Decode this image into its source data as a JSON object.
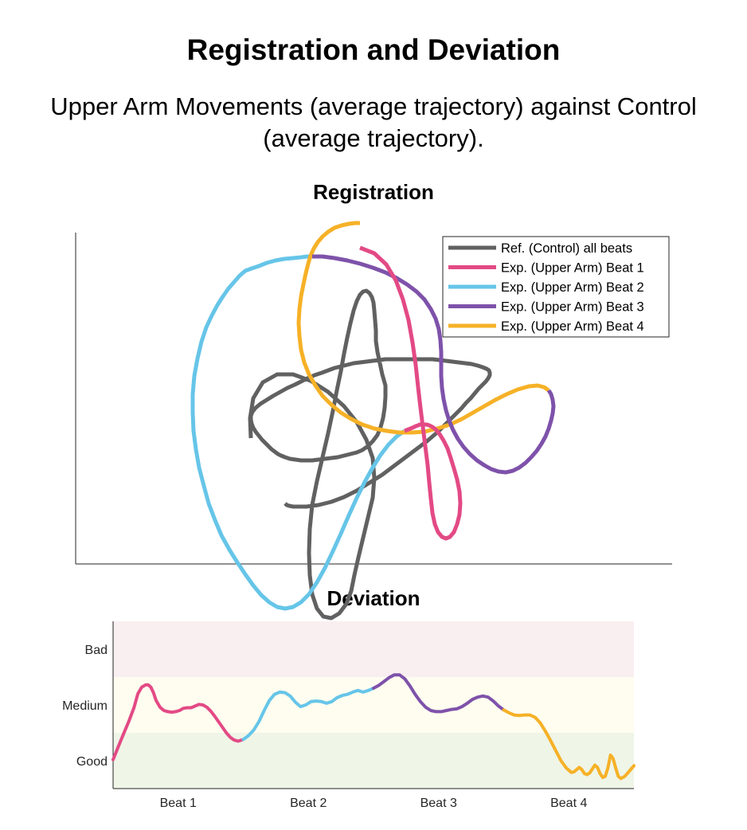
{
  "title": "Registration and Deviation",
  "subtitle": "Upper Arm Movements (average trajectory) against Control (average trajectory).",
  "colors": {
    "control": "#616161",
    "beat1": "#e34a85",
    "beat2": "#66c5e8",
    "beat3": "#7e52aa",
    "beat4": "#f6b127",
    "band_bad": "#f9eff1",
    "band_medium": "#fefdf0",
    "band_good": "#eff5e7"
  },
  "chart_data": [
    {
      "type": "line",
      "title": "Registration",
      "xlabel": "",
      "ylabel": "",
      "legend_position": "top-right",
      "legend": [
        {
          "label": "Ref. (Control) all beats",
          "color": "#616161"
        },
        {
          "label": "Exp. (Upper Arm) Beat 1",
          "color": "#e34a85"
        },
        {
          "label": "Exp. (Upper Arm) Beat 2",
          "color": "#66c5e8"
        },
        {
          "label": "Exp. (Upper Arm) Beat 3",
          "color": "#7e52aa"
        },
        {
          "label": "Exp. (Upper Arm) Beat 4",
          "color": "#f6b127"
        }
      ],
      "series": [
        {
          "id": "control",
          "name": "Ref. (Control) all beats",
          "color": "#616161",
          "x": [
            315,
            314,
            318,
            330,
            348,
            368,
            390,
            412,
            432,
            448,
            460,
            468,
            470,
            468,
            462,
            456,
            450,
            445,
            441,
            435,
            426,
            416,
            406,
            398,
            392,
            389,
            388,
            389,
            392,
            398,
            405,
            412,
            418,
            423,
            428,
            432,
            436,
            440,
            444,
            448,
            452,
            456,
            460,
            464,
            467,
            469,
            470,
            471,
            472,
            472,
            474,
            477,
            480,
            484,
            484,
            483,
            481,
            478,
            474,
            468,
            462,
            455,
            448,
            440,
            432,
            424,
            416,
            408,
            400,
            392,
            385,
            378,
            371,
            364,
            358,
            353,
            349,
            345,
            341,
            337,
            333,
            329,
            325,
            321,
            318,
            316,
            315,
            315,
            317,
            321,
            327,
            335,
            343,
            352,
            361,
            370,
            378,
            386,
            395,
            404,
            412,
            420,
            428,
            436,
            444,
            452,
            460,
            468,
            476,
            484,
            492,
            500,
            508,
            516,
            525,
            534,
            543,
            552,
            560,
            568,
            576,
            584,
            592,
            600,
            606,
            611,
            614,
            615,
            615,
            613,
            610,
            606,
            601,
            596,
            591,
            585,
            580,
            574,
            568,
            562,
            556,
            550,
            543,
            536,
            528,
            520,
            512,
            504,
            496,
            488,
            480,
            472,
            464,
            456,
            448,
            440,
            432,
            424,
            416,
            408,
            400,
            392,
            385,
            379,
            373,
            368,
            363,
            360,
            358
          ],
          "y": [
            550,
            525,
            500,
            480,
            470,
            470,
            478,
            492,
            510,
            530,
            552,
            575,
            600,
            625,
            650,
            675,
            700,
            722,
            742,
            758,
            770,
            776,
            774,
            764,
            746,
            722,
            694,
            664,
            634,
            604,
            574,
            544,
            516,
            490,
            466,
            444,
            424,
            406,
            390,
            378,
            370,
            366,
            365,
            368,
            373,
            380,
            390,
            402,
            415,
            428,
            442,
            456,
            470,
            484,
            498,
            512,
            525,
            536,
            546,
            554,
            560,
            565,
            568,
            570,
            572,
            574,
            575,
            576,
            577,
            578,
            578,
            578,
            577,
            576,
            574,
            572,
            570,
            567,
            564,
            560,
            556,
            552,
            547,
            542,
            537,
            532,
            527,
            522,
            517,
            512,
            507,
            502,
            497,
            492,
            487,
            483,
            479,
            475,
            471,
            468,
            465,
            462,
            460,
            458,
            456,
            455,
            454,
            453,
            452,
            451,
            451,
            451,
            451,
            451,
            451,
            451,
            451,
            452,
            453,
            454,
            455,
            456,
            457,
            459,
            461,
            463,
            465,
            468,
            471,
            475,
            479,
            483,
            488,
            494,
            500,
            506,
            512,
            518,
            524,
            530,
            536,
            542,
            548,
            554,
            560,
            566,
            572,
            578,
            584,
            590,
            596,
            601,
            606,
            611,
            616,
            620,
            624,
            627,
            630,
            632,
            634,
            635,
            636,
            636,
            636,
            636,
            635,
            634,
            632
          ]
        },
        {
          "id": "beat1",
          "name": "Exp. (Upper Arm) Beat 1",
          "color": "#e34a85",
          "x": [
            452,
            470,
            485,
            497,
            506,
            513,
            518,
            522,
            525,
            528,
            531,
            534,
            537,
            539,
            541,
            543,
            546,
            550,
            555,
            560,
            565,
            570,
            574,
            577,
            578,
            577,
            574,
            570,
            566,
            562,
            557,
            552,
            547,
            543,
            539,
            536,
            533,
            531,
            529,
            527,
            525,
            522,
            518,
            513,
            508
          ],
          "y": [
            311,
            318,
            332,
            352,
            376,
            402,
            430,
            458,
            486,
            512,
            536,
            560,
            584,
            606,
            626,
            644,
            658,
            668,
            674,
            676,
            674,
            668,
            658,
            646,
            632,
            617,
            602,
            588,
            575,
            563,
            553,
            545,
            539,
            536,
            534,
            533,
            533,
            533,
            533,
            533,
            534,
            535,
            537,
            539,
            541
          ]
        },
        {
          "id": "beat2",
          "name": "Exp. (Upper Arm) Beat 2",
          "color": "#66c5e8",
          "x": [
            508,
            498,
            488,
            478,
            468,
            458,
            448,
            438,
            428,
            418,
            408,
            398,
            388,
            378,
            368,
            358,
            348,
            338,
            328,
            318,
            308,
            298,
            288,
            278,
            270,
            262,
            256,
            250,
            246,
            243,
            242,
            242,
            244,
            248,
            253,
            259,
            266,
            273,
            280,
            287,
            294,
            301,
            308,
            316,
            325,
            335,
            346,
            357,
            368,
            378,
            386,
            392
          ],
          "y": [
            541,
            548,
            558,
            571,
            587,
            605,
            625,
            647,
            670,
            692,
            713,
            731,
            746,
            756,
            762,
            764,
            762,
            756,
            747,
            735,
            721,
            706,
            690,
            672,
            653,
            632,
            610,
            587,
            564,
            541,
            518,
            495,
            472,
            450,
            429,
            411,
            396,
            383,
            372,
            362,
            354,
            346,
            340,
            337,
            334,
            330,
            327,
            325,
            324,
            323,
            322,
            322
          ]
        },
        {
          "id": "beat3",
          "name": "Exp. (Upper Arm) Beat 3",
          "color": "#7e52aa",
          "x": [
            392,
            405,
            420,
            436,
            452,
            468,
            484,
            498,
            511,
            523,
            533,
            541,
            547,
            551,
            553,
            554,
            554,
            554,
            555,
            557,
            560,
            564,
            569,
            575,
            582,
            590,
            599,
            608,
            617,
            626,
            635,
            644,
            652,
            660,
            667,
            674,
            680,
            685,
            689,
            692,
            694,
            695,
            694,
            692,
            689
          ],
          "y": [
            322,
            322,
            324,
            327,
            331,
            336,
            342,
            349,
            357,
            366,
            376,
            388,
            400,
            413,
            427,
            442,
            457,
            472,
            487,
            501,
            515,
            528,
            540,
            551,
            561,
            570,
            578,
            584,
            589,
            592,
            593,
            591,
            587,
            581,
            574,
            566,
            557,
            548,
            538,
            528,
            519,
            510,
            502,
            495,
            490
          ]
        },
        {
          "id": "beat4",
          "name": "Exp. (Upper Arm) Beat 4",
          "color": "#f6b127",
          "x": [
            689,
            683,
            675,
            664,
            650,
            636,
            622,
            608,
            594,
            580,
            565,
            549,
            533,
            517,
            501,
            486,
            470,
            455,
            441,
            428,
            416,
            405,
            396,
            388,
            382,
            378,
            376,
            375,
            376,
            378,
            381,
            384,
            387,
            390,
            394,
            399,
            405,
            412,
            420,
            429,
            438,
            446,
            452
          ],
          "y": [
            490,
            486,
            484,
            485,
            489,
            495,
            502,
            510,
            518,
            526,
            533,
            538,
            542,
            543,
            543,
            541,
            538,
            533,
            526,
            518,
            508,
            497,
            484,
            470,
            455,
            439,
            422,
            405,
            388,
            372,
            357,
            343,
            331,
            321,
            312,
            304,
            297,
            291,
            286,
            283,
            281,
            280,
            280
          ]
        }
      ]
    },
    {
      "type": "line",
      "title": "Deviation",
      "xlabel": "",
      "ylabel": "",
      "categories": [
        "Beat 1",
        "Beat 2",
        "Beat 3",
        "Beat 4"
      ],
      "y_ticks": [
        "Good",
        "Medium",
        "Bad"
      ],
      "bands": [
        "Good",
        "Medium",
        "Bad"
      ],
      "xlim": [
        0,
        4
      ],
      "ylim": [
        0,
        3
      ],
      "series": [
        {
          "id": "beat1",
          "name": "Exp. (Upper Arm) Beat 1",
          "color": "#e34a85",
          "x": [
            0.0,
            0.04,
            0.08,
            0.12,
            0.16,
            0.19,
            0.22,
            0.25,
            0.27,
            0.29,
            0.31,
            0.33,
            0.36,
            0.39,
            0.42,
            0.45,
            0.48,
            0.51,
            0.54,
            0.57,
            0.6,
            0.63,
            0.66,
            0.69,
            0.72,
            0.75,
            0.78,
            0.81,
            0.84,
            0.87,
            0.9,
            0.93,
            0.96,
            1.0
          ],
          "y": [
            0.52,
            0.75,
            0.98,
            1.2,
            1.45,
            1.7,
            1.82,
            1.86,
            1.86,
            1.82,
            1.72,
            1.58,
            1.46,
            1.4,
            1.38,
            1.37,
            1.38,
            1.4,
            1.44,
            1.45,
            1.45,
            1.48,
            1.51,
            1.5,
            1.46,
            1.39,
            1.3,
            1.2,
            1.1,
            1.0,
            0.92,
            0.87,
            0.85,
            0.88
          ]
        },
        {
          "id": "beat2",
          "name": "Exp. (Upper Arm) Beat 2",
          "color": "#66c5e8",
          "x": [
            1.0,
            1.04,
            1.08,
            1.12,
            1.16,
            1.2,
            1.24,
            1.28,
            1.32,
            1.36,
            1.4,
            1.44,
            1.48,
            1.52,
            1.56,
            1.6,
            1.64,
            1.68,
            1.72,
            1.76,
            1.8,
            1.84,
            1.88,
            1.92,
            1.96,
            2.0
          ],
          "y": [
            0.88,
            0.95,
            1.05,
            1.2,
            1.4,
            1.58,
            1.69,
            1.73,
            1.72,
            1.66,
            1.55,
            1.47,
            1.5,
            1.56,
            1.57,
            1.56,
            1.53,
            1.56,
            1.63,
            1.67,
            1.69,
            1.73,
            1.76,
            1.73,
            1.76,
            1.8
          ]
        },
        {
          "id": "beat3",
          "name": "Exp. (Upper Arm) Beat 3",
          "color": "#7e52aa",
          "x": [
            2.0,
            2.04,
            2.08,
            2.12,
            2.16,
            2.2,
            2.24,
            2.28,
            2.32,
            2.36,
            2.4,
            2.44,
            2.48,
            2.52,
            2.56,
            2.6,
            2.64,
            2.68,
            2.72,
            2.76,
            2.8,
            2.84,
            2.88,
            2.92,
            2.96,
            3.0
          ],
          "y": [
            1.8,
            1.85,
            1.92,
            1.99,
            2.04,
            2.04,
            1.97,
            1.84,
            1.69,
            1.56,
            1.46,
            1.4,
            1.38,
            1.38,
            1.4,
            1.42,
            1.43,
            1.47,
            1.53,
            1.6,
            1.64,
            1.66,
            1.64,
            1.57,
            1.48,
            1.41
          ]
        },
        {
          "id": "beat4",
          "name": "Exp. (Upper Arm) Beat 4",
          "color": "#f6b127",
          "x": [
            3.0,
            3.04,
            3.08,
            3.12,
            3.16,
            3.2,
            3.24,
            3.28,
            3.32,
            3.36,
            3.4,
            3.44,
            3.48,
            3.52,
            3.54,
            3.56,
            3.58,
            3.6,
            3.62,
            3.64,
            3.66,
            3.68,
            3.7,
            3.72,
            3.74,
            3.76,
            3.78,
            3.8,
            3.82,
            3.84,
            3.86,
            3.88,
            3.9,
            3.93,
            3.96,
            4.0
          ],
          "y": [
            1.41,
            1.36,
            1.32,
            1.31,
            1.32,
            1.32,
            1.28,
            1.18,
            1.03,
            0.86,
            0.68,
            0.5,
            0.37,
            0.29,
            0.3,
            0.34,
            0.38,
            0.34,
            0.27,
            0.25,
            0.28,
            0.35,
            0.42,
            0.38,
            0.27,
            0.2,
            0.22,
            0.37,
            0.6,
            0.54,
            0.37,
            0.22,
            0.18,
            0.22,
            0.3,
            0.41
          ]
        }
      ]
    }
  ]
}
